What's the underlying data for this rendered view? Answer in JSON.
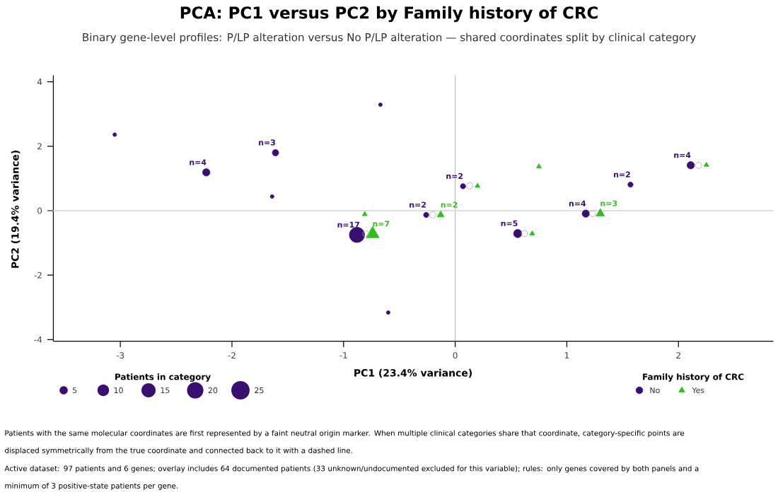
{
  "chart_data": {
    "type": "bubble",
    "title": "PCA: PC1 versus PC2 by Family history of CRC",
    "subtitle": "Binary gene-level profiles: P/LP alteration versus No P/LP alteration — shared coordinates split by clinical category",
    "xlabel": "PC1 (23.4% variance)",
    "ylabel": "PC2 (19.4% variance)",
    "legend_title": "Family history of CRC",
    "xlim": [
      -3.6,
      2.85
    ],
    "ylim": [
      -4.05,
      4.2
    ],
    "xticks": [
      -3,
      -2,
      -1,
      0,
      1,
      2
    ],
    "yticks": [
      -4,
      -2,
      0,
      2,
      4
    ],
    "grid": false,
    "legend": "bottom",
    "size_legend": [
      5,
      10,
      15,
      20,
      25
    ],
    "ref_lines": [
      {
        "axis": "x",
        "value": 0,
        "color": "#b0b0b0"
      },
      {
        "axis": "y",
        "value": 0,
        "color": "#dddddd"
      }
    ],
    "series": [
      {
        "name": "No",
        "color": "#3b0f6f",
        "marker": "circle",
        "x": [
          -3.05,
          -2.23,
          -1.61,
          -1.64,
          -0.67,
          -0.88,
          -0.6,
          -0.26,
          0.07,
          0.56,
          1.17,
          1.57,
          2.11
        ],
        "values": [
          2.36,
          1.19,
          1.8,
          0.44,
          3.29,
          -0.75,
          -3.16,
          -0.13,
          0.76,
          -0.71,
          -0.09,
          0.81,
          1.41
        ],
        "sizes": [
          1,
          4,
          3,
          1,
          1,
          17,
          1,
          2,
          2,
          5,
          4,
          2,
          4
        ],
        "value_labels": [
          null,
          "n=4",
          "n=3",
          null,
          null,
          "n=17",
          null,
          "n=2",
          "n=2",
          "n=5",
          "n=4",
          "n=2",
          "n=4"
        ]
      },
      {
        "name": "Yes",
        "color": "#33bb22",
        "marker": "triangle",
        "x": [
          -0.81,
          -0.74,
          -0.13,
          0.2,
          0.75,
          0.69,
          1.3,
          2.25
        ],
        "values": [
          -0.11,
          -0.72,
          -0.13,
          0.77,
          1.37,
          -0.71,
          -0.09,
          1.42
        ],
        "sizes": [
          1,
          7,
          2,
          1,
          1,
          1,
          3,
          1
        ],
        "value_labels": [
          null,
          "n=7",
          "n=2",
          null,
          null,
          null,
          "n=3",
          null
        ]
      },
      {
        "type": "scatter",
        "color": "#aaaaaa",
        "marker": "circle",
        "x": [
          -0.8,
          -0.2,
          0.13,
          0.62,
          1.23,
          2.18
        ],
        "values": [
          -0.72,
          -0.13,
          0.77,
          -0.71,
          -0.09,
          1.41
        ]
      }
    ],
    "annotations": [
      "Patients in category",
      "Patients with the same molecular coordinates are first represented by a faint neutral origin marker. When multiple clinical categories share that coordinate, category-specific points are displaced symmetrically from the true coordinate and connected back to it with a dashed line.",
      "Active dataset: 97 patients and 6 genes; overlay includes 64 documented patients (33 unknown/undocumented excluded for this variable); rules: only genes covered by both panels and a minimum of 3 positive-state patients per gene."
    ]
  }
}
